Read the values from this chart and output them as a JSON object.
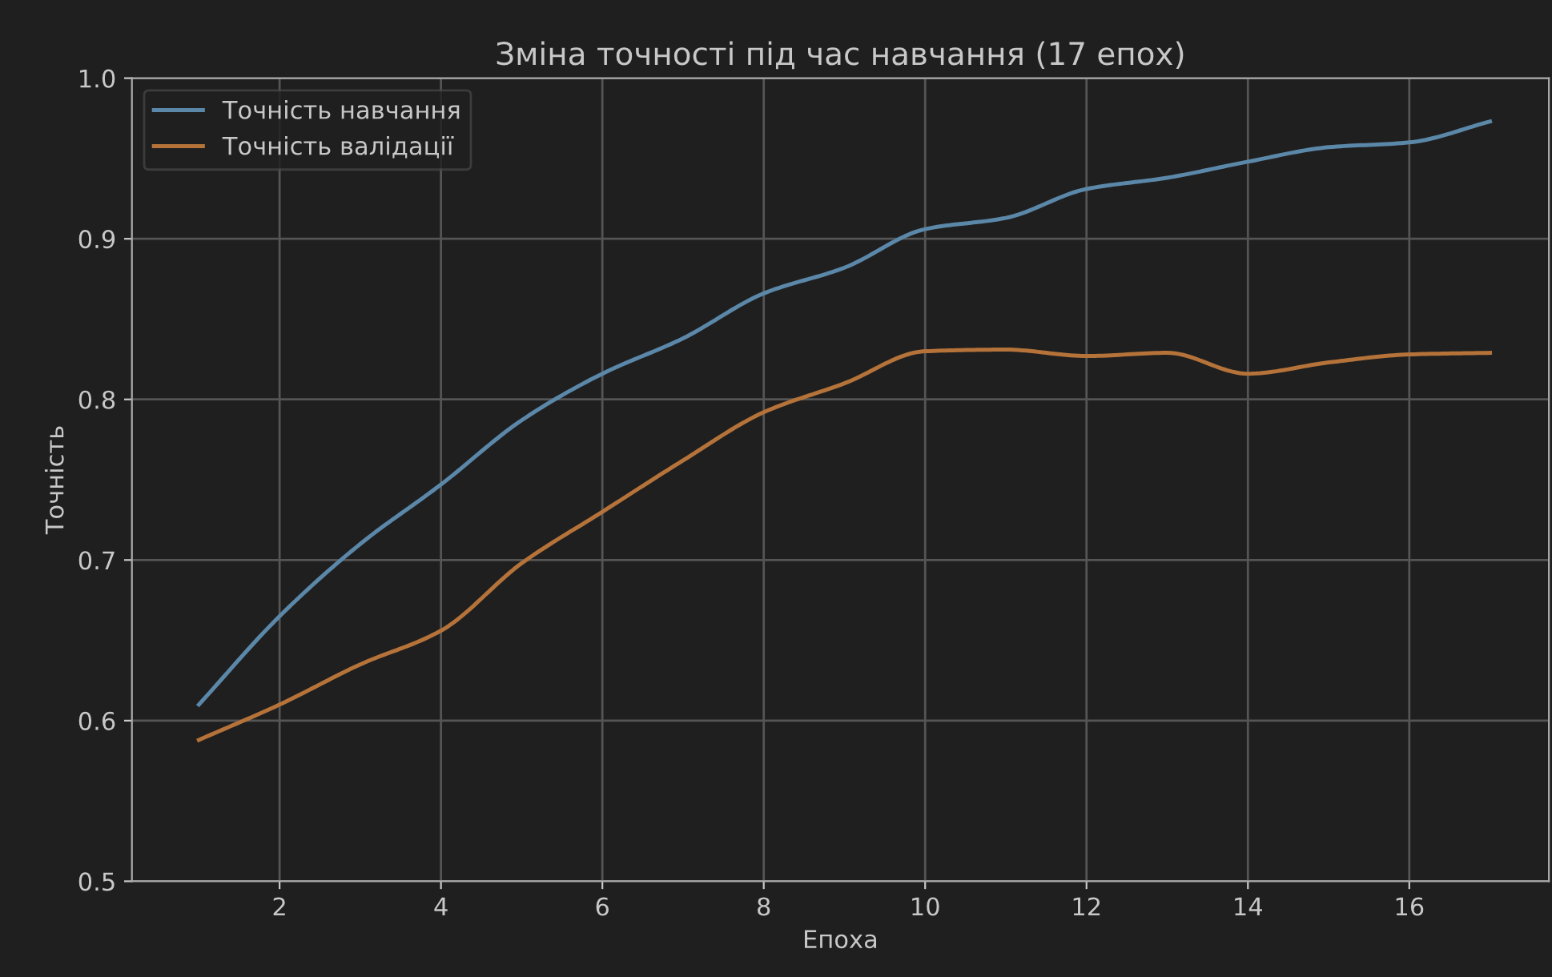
{
  "chart_data": {
    "type": "line",
    "title": "Зміна точності під час навчання (17 епох)",
    "xlabel": "Епоха",
    "ylabel": "Точність",
    "x": [
      1,
      2,
      3,
      4,
      5,
      6,
      7,
      8,
      9,
      10,
      11,
      12,
      13,
      14,
      15,
      16,
      17
    ],
    "series": [
      {
        "name": "Точність навчання",
        "color": "#5b87a8",
        "values": [
          0.61,
          0.665,
          0.71,
          0.747,
          0.787,
          0.816,
          0.838,
          0.866,
          0.882,
          0.906,
          0.913,
          0.931,
          0.938,
          0.948,
          0.957,
          0.96,
          0.973
        ]
      },
      {
        "name": "Точність валідації",
        "color": "#b5733a",
        "values": [
          0.588,
          0.61,
          0.635,
          0.656,
          0.698,
          0.73,
          0.762,
          0.792,
          0.81,
          0.83,
          0.831,
          0.827,
          0.829,
          0.816,
          0.823,
          0.828,
          0.829
        ]
      }
    ],
    "xlim": [
      0.17,
      17.73
    ],
    "ylim": [
      0.5,
      1.0
    ],
    "xticks": [
      2,
      4,
      6,
      8,
      10,
      12,
      14,
      16
    ],
    "yticks": [
      0.5,
      0.6,
      0.7,
      0.8,
      0.9,
      {
        "value": 1.0,
        "label": "1.0"
      }
    ],
    "grid": true,
    "legend": "top left",
    "marker": "none",
    "line_style": "solid"
  }
}
